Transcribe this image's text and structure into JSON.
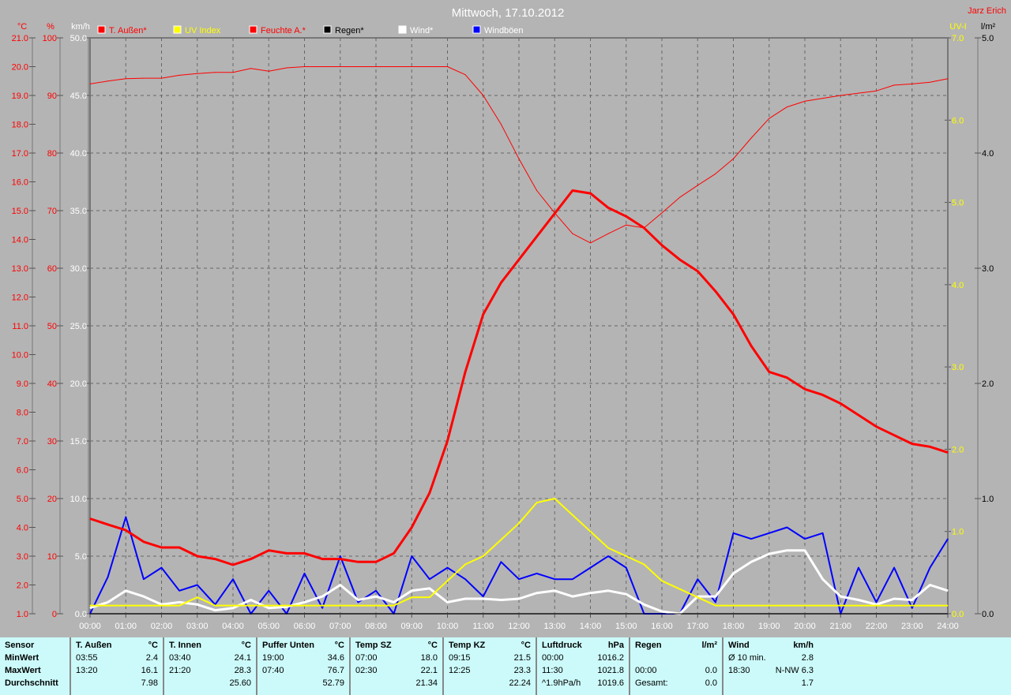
{
  "header": {
    "title": "Mittwoch, 17.10.2012",
    "author": "Jarz Erich"
  },
  "chart_data": {
    "type": "line",
    "title": "Mittwoch, 17.10.2012",
    "grid": true,
    "legend_placement": "top",
    "x": [
      "00:00",
      "00:30",
      "01:00",
      "01:30",
      "02:00",
      "02:30",
      "03:00",
      "03:30",
      "04:00",
      "04:30",
      "05:00",
      "05:30",
      "06:00",
      "06:30",
      "07:00",
      "07:30",
      "08:00",
      "08:30",
      "09:00",
      "09:30",
      "10:00",
      "10:30",
      "11:00",
      "11:30",
      "12:00",
      "12:30",
      "13:00",
      "13:30",
      "14:00",
      "14:30",
      "15:00",
      "15:30",
      "16:00",
      "16:30",
      "17:00",
      "17:30",
      "18:00",
      "18:30",
      "19:00",
      "19:30",
      "20:00",
      "20:30",
      "21:00",
      "21:30",
      "22:00",
      "22:30",
      "23:00",
      "23:30",
      "24:00"
    ],
    "x_tick_labels": [
      "00:00",
      "01:00",
      "02:00",
      "03:00",
      "04:00",
      "05:00",
      "06:00",
      "07:00",
      "08:00",
      "09:00",
      "10:00",
      "11:00",
      "12:00",
      "13:00",
      "14:00",
      "15:00",
      "16:00",
      "17:00",
      "18:00",
      "19:00",
      "20:00",
      "21:00",
      "22:00",
      "23:00",
      "24:00"
    ],
    "axes": {
      "celsius": {
        "unit": "°C",
        "range": [
          1,
          21
        ],
        "ticks": [
          "21.0",
          "20.0",
          "19.0",
          "18.0",
          "17.0",
          "16.0",
          "15.0",
          "14.0",
          "13.0",
          "12.0",
          "11.0",
          "10.0",
          "9.0",
          "8.0",
          "7.0",
          "6.0",
          "5.0",
          "4.0",
          "3.0",
          "2.0",
          "1.0"
        ],
        "color": "#ff0000"
      },
      "percent": {
        "unit": "%",
        "range": [
          0,
          100
        ],
        "ticks": [
          "100",
          "90",
          "80",
          "70",
          "60",
          "50",
          "40",
          "30",
          "20",
          "10",
          "0"
        ],
        "color": "#ff0000"
      },
      "kmh": {
        "unit": "km/h",
        "range": [
          0,
          50
        ],
        "ticks": [
          "50.0",
          "45.0",
          "40.0",
          "35.0",
          "30.0",
          "25.0",
          "20.0",
          "15.0",
          "10.0",
          "5.0",
          "0.0"
        ],
        "color": "#ffffff"
      },
      "uv": {
        "unit": "UV-I",
        "range": [
          0,
          7
        ],
        "ticks": [
          "7.0",
          "6.0",
          "5.0",
          "4.0",
          "3.0",
          "2.0",
          "1.0",
          "0.0"
        ],
        "color": "#ffff00"
      },
      "rain": {
        "unit": "l/m²",
        "range": [
          0,
          5
        ],
        "ticks": [
          "5.0",
          "4.0",
          "3.0",
          "2.0",
          "1.0",
          "0.0"
        ],
        "color": "#000000"
      }
    },
    "series": [
      {
        "name": "T. Außen*",
        "axis": "celsius",
        "color": "#ff0000",
        "values": [
          4.3,
          4.1,
          3.9,
          3.5,
          3.3,
          3.3,
          3.0,
          2.9,
          2.7,
          2.9,
          3.2,
          3.1,
          3.1,
          2.9,
          2.9,
          2.8,
          2.8,
          3.1,
          4.0,
          5.2,
          7.0,
          9.4,
          11.4,
          12.5,
          13.3,
          14.1,
          14.9,
          15.7,
          15.6,
          15.1,
          14.8,
          14.4,
          13.8,
          13.3,
          12.9,
          12.2,
          11.4,
          10.3,
          9.4,
          9.2,
          8.8,
          8.6,
          8.3,
          7.9,
          7.5,
          7.2,
          6.9,
          6.8,
          6.6
        ]
      },
      {
        "name": "UV Index",
        "axis": "uv",
        "color": "#ffff00",
        "values": [
          0.1,
          0.1,
          0.1,
          0.1,
          0.1,
          0.1,
          0.2,
          0.1,
          0.1,
          0.1,
          0.1,
          0.1,
          0.1,
          0.1,
          0.1,
          0.1,
          0.1,
          0.1,
          0.2,
          0.2,
          0.4,
          0.6,
          0.7,
          0.9,
          1.1,
          1.35,
          1.4,
          1.2,
          1.0,
          0.8,
          0.7,
          0.6,
          0.4,
          0.3,
          0.2,
          0.1,
          0.1,
          0.1,
          0.1,
          0.1,
          0.1,
          0.1,
          0.1,
          0.1,
          0.1,
          0.1,
          0.1,
          0.1,
          0.1
        ]
      },
      {
        "name": "Feuchte A.*",
        "axis": "percent",
        "color": "#ff0000",
        "values": [
          92,
          92.5,
          92.9,
          93,
          93,
          93.5,
          93.8,
          94,
          94,
          94.7,
          94.2,
          94.8,
          95,
          95,
          95,
          95,
          95,
          95,
          95,
          95,
          95,
          93.6,
          90,
          85,
          79,
          73.5,
          69.6,
          66,
          64.4,
          66,
          67.5,
          67,
          69.6,
          72.3,
          74.4,
          76.4,
          79,
          82.6,
          86,
          88,
          89,
          89.5,
          90,
          90.4,
          90.8,
          91.8,
          92,
          92.3,
          92.9
        ]
      },
      {
        "name": "Regen*",
        "axis": "rain",
        "color": "#000000",
        "values": [
          0,
          0,
          0,
          0,
          0,
          0,
          0,
          0,
          0,
          0,
          0,
          0,
          0,
          0,
          0,
          0,
          0,
          0,
          0,
          0,
          0,
          0,
          0,
          0,
          0,
          0,
          0,
          0,
          0,
          0,
          0,
          0,
          0,
          0,
          0,
          0,
          0,
          0,
          0,
          0,
          0,
          0,
          0,
          0,
          0,
          0,
          0,
          0,
          0
        ]
      },
      {
        "name": "Wind*",
        "axis": "kmh",
        "color": "#ffffff",
        "values": [
          0.5,
          1,
          2,
          1.5,
          0.8,
          1,
          0.8,
          0.3,
          0.5,
          1.2,
          0.5,
          0.6,
          1,
          1.5,
          2.5,
          1.2,
          1.5,
          1,
          2,
          2.2,
          1,
          1.3,
          1.3,
          1.2,
          1.3,
          1.8,
          2,
          1.5,
          1.8,
          2,
          1.7,
          0.8,
          0.2,
          0,
          1.5,
          1.5,
          3.5,
          4.5,
          5.2,
          5.5,
          5.5,
          3,
          1.5,
          1.2,
          0.8,
          1.3,
          1.2,
          2.5,
          2
        ]
      },
      {
        "name": "Windböen",
        "axis": "kmh",
        "color": "#0000ff",
        "values": [
          0,
          3.2,
          8.4,
          3,
          4,
          2,
          2.5,
          0.8,
          3,
          0,
          2,
          0,
          3.5,
          0.5,
          5,
          1,
          2,
          0,
          5,
          3,
          4,
          3,
          1.5,
          4.5,
          3,
          3.5,
          3,
          3,
          4,
          5,
          4,
          0,
          0,
          0,
          3,
          1,
          7,
          6.5,
          7,
          7.5,
          6.5,
          7,
          0,
          4,
          1,
          4,
          0.5,
          4,
          6.5
        ]
      }
    ]
  },
  "stats": {
    "labels": {
      "sensor": "Sensor",
      "min": "MinWert",
      "max": "MaxWert",
      "avg": "Durchschnitt"
    },
    "columns": [
      {
        "name": "T. Außen",
        "unit": "°C",
        "min_time": "03:55",
        "min": "2.4",
        "max_time": "13:20",
        "max": "16.1",
        "avg_label": "",
        "avg": "7.98"
      },
      {
        "name": "T. Innen",
        "unit": "°C",
        "min_time": "03:40",
        "min": "24.1",
        "max_time": "21:20",
        "max": "28.3",
        "avg_label": "",
        "avg": "25.60"
      },
      {
        "name": "Puffer Unten",
        "unit": "°C",
        "min_time": "19:00",
        "min": "34.6",
        "max_time": "07:40",
        "max": "76.7",
        "avg_label": "",
        "avg": "52.79"
      },
      {
        "name": "Temp SZ",
        "unit": "°C",
        "min_time": "07:00",
        "min": "18.0",
        "max_time": "02:30",
        "max": "22.1",
        "avg_label": "",
        "avg": "21.34"
      },
      {
        "name": "Temp KZ",
        "unit": "°C",
        "min_time": "09:15",
        "min": "21.5",
        "max_time": "12:25",
        "max": "23.3",
        "avg_label": "",
        "avg": "22.24"
      },
      {
        "name": "Luftdruck",
        "unit": "hPa",
        "min_time": "00:00",
        "min": "1016.2",
        "max_time": "11:30",
        "max": "1021.8",
        "avg_label": "^1.9hPa/h",
        "avg": "1019.6"
      },
      {
        "name": "Regen",
        "unit": "l/m²",
        "min_time": "",
        "min": "",
        "max_time": "00:00",
        "max": "0.0",
        "avg_label": "Gesamt:",
        "avg": "0.0"
      },
      {
        "name": "Wind",
        "unit": "km/h",
        "min_time": "Ø 10 min.",
        "min": "2.8",
        "max_time": "18:30",
        "max": "N-NW 6.3",
        "avg_label": "",
        "avg": "1.7"
      }
    ]
  }
}
